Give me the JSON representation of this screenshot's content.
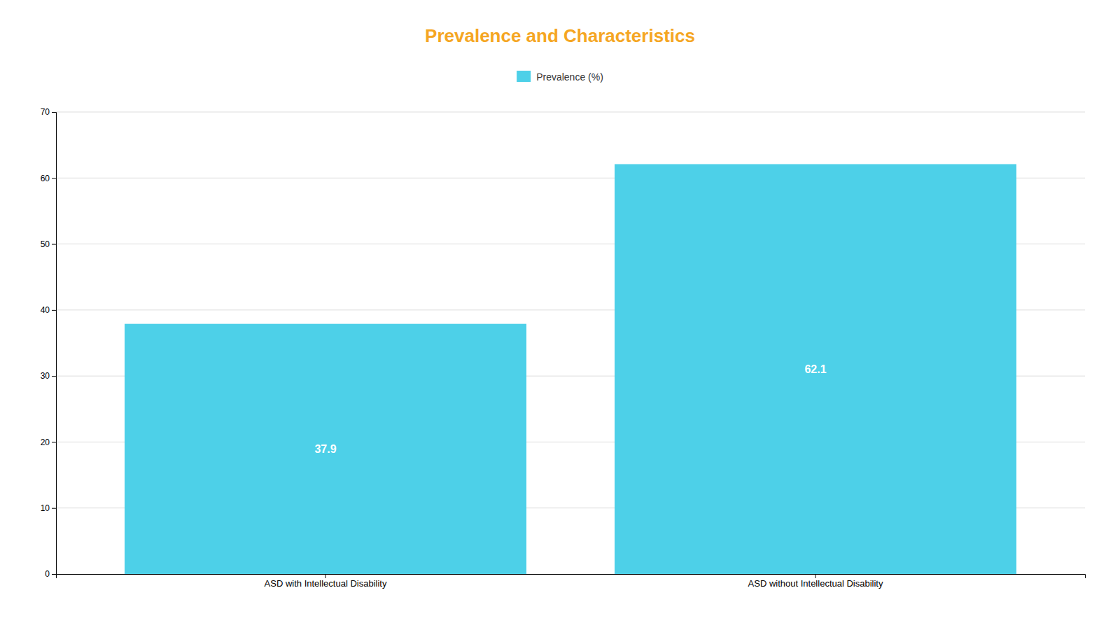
{
  "chart_data": {
    "type": "bar",
    "title": "Prevalence and Characteristics",
    "categories": [
      "ASD with Intellectual Disability",
      "ASD without Intellectual Disability"
    ],
    "series": [
      {
        "name": "Prevalence (%)",
        "color": "#4DD0E8",
        "values": [
          37.9,
          62.1
        ]
      }
    ],
    "ylim": [
      0,
      70
    ],
    "yticks": [
      0,
      10,
      20,
      30,
      40,
      50,
      60,
      70
    ],
    "grid": true,
    "legend": "top",
    "data_labels": true
  }
}
